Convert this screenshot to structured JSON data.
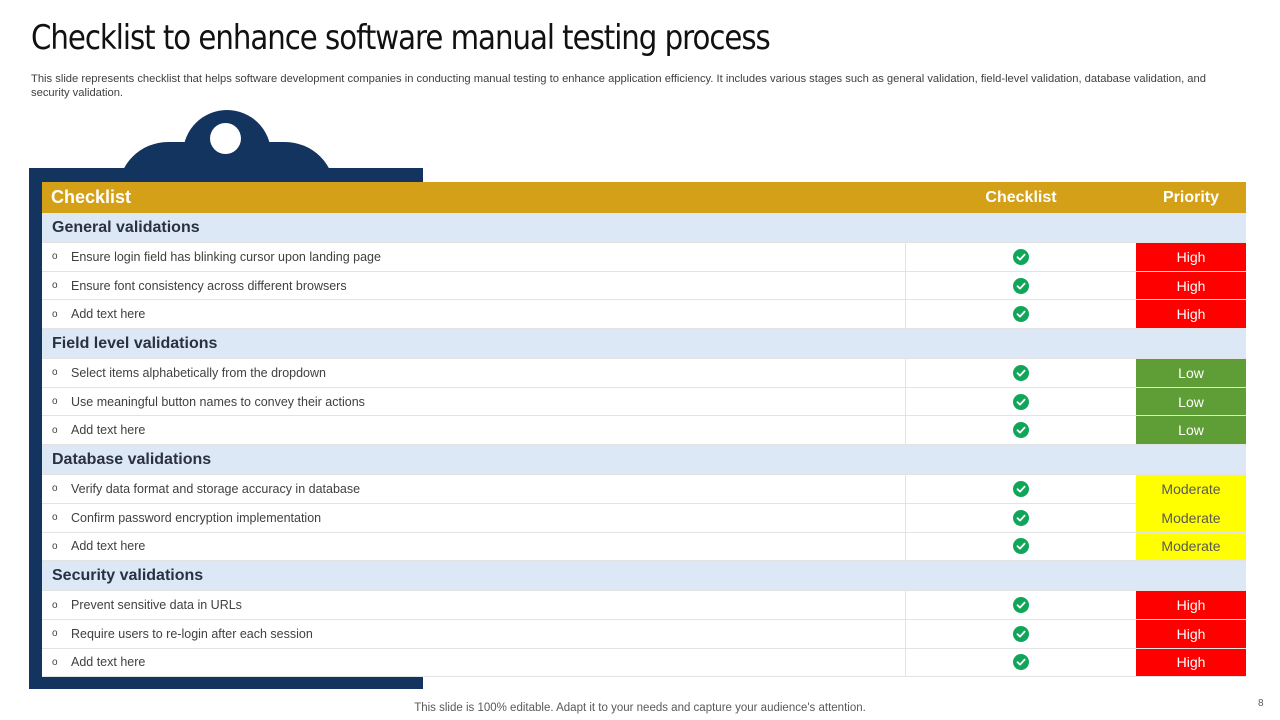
{
  "title": "Checklist to enhance software manual testing process",
  "subtitle": "This slide represents checklist that helps software development companies in conducting manual testing to enhance application efficiency. It includes various stages such as general validation, field-level validation, database validation, and security validation.",
  "table": {
    "headers": {
      "item": "Checklist",
      "checklist": "Checklist",
      "priority": "Priority"
    },
    "bullet": "o",
    "sections": [
      {
        "title": "General validations",
        "rows": [
          {
            "text": "Ensure login field has blinking cursor upon landing page",
            "priority": "High"
          },
          {
            "text": "Ensure font consistency across different  browsers",
            "priority": "High"
          },
          {
            "text": "Add text here",
            "priority": "High"
          }
        ]
      },
      {
        "title": "Field level validations",
        "rows": [
          {
            "text": "Select items alphabetically from the dropdown",
            "priority": "Low"
          },
          {
            "text": "Use meaningful  button names to convey  their actions",
            "priority": "Low"
          },
          {
            "text": "Add text here",
            "priority": "Low"
          }
        ]
      },
      {
        "title": "Database validations",
        "rows": [
          {
            "text": "Verify data format  and storage accuracy in database",
            "priority": "Moderate"
          },
          {
            "text": "Confirm  password  encryption  implementation",
            "priority": "Moderate"
          },
          {
            "text": "Add text here",
            "priority": "Moderate"
          }
        ]
      },
      {
        "title": "Security validations",
        "rows": [
          {
            "text": "Prevent  sensitive data in URLs",
            "priority": "High"
          },
          {
            "text": "Require  users to re-login  after each session",
            "priority": "High"
          },
          {
            "text": "Add text here",
            "priority": "High"
          }
        ]
      }
    ]
  },
  "colors": {
    "header": "#d4a017",
    "section": "#dde8f7",
    "check": "#10a65a",
    "high": "#ff0000",
    "low": "#5f9e37",
    "moderate": "#ffff00",
    "board": "#12345f"
  },
  "icons": {
    "check": "check-circle-icon",
    "clipboard": "clipboard-clip-icon"
  },
  "footer": "This slide is 100% editable. Adapt it to your needs and capture your audience's attention.",
  "page_number": "8"
}
